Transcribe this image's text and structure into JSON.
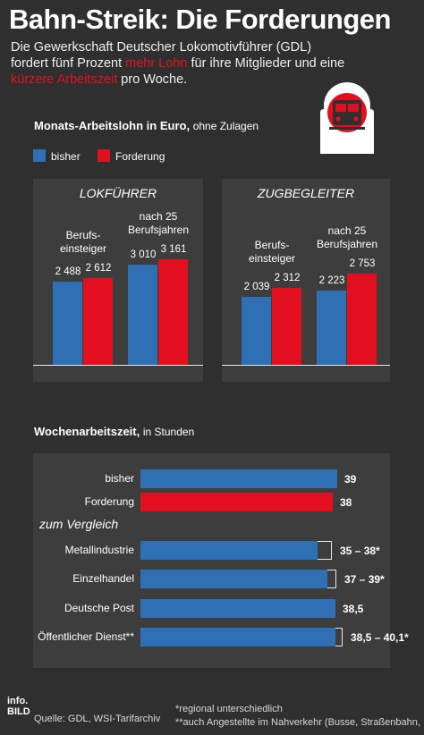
{
  "title": "Bahn-Streik: Die Forderungen",
  "intro": {
    "part1": "Die Gewerkschaft Deutscher Lokomotivführer (GDL) fordert fünf Prozent ",
    "hl1": "mehr Lohn",
    "part2": " für ihre Mitglieder und eine ",
    "hl2": "kürzere Arbeitszeit",
    "part3": " pro Woche."
  },
  "colors": {
    "bisher": "#2f6fb3",
    "forderung": "#e2101f",
    "background": "#2f2f2f",
    "panel": "#3d3d3d"
  },
  "icon": "train-icon",
  "chart_data": [
    {
      "type": "bar",
      "title": "Monats-Arbeitslohn in Euro,",
      "subtitle": "ohne Zulagen",
      "legend": [
        "bisher",
        "Forderung"
      ],
      "panels": [
        {
          "title": "LOKFÜHRER",
          "categories": [
            "Berufs-\neinsteiger",
            "nach 25\nBerufsjahren"
          ],
          "series": [
            {
              "name": "bisher",
              "values": [
                2488,
                3010
              ],
              "labels": [
                "2 488",
                "3 010"
              ]
            },
            {
              "name": "Forderung",
              "values": [
                2612,
                3161
              ],
              "labels": [
                "2 612",
                "3 161"
              ]
            }
          ]
        },
        {
          "title": "ZUGBEGLEITER",
          "categories": [
            "Berufs-\neinsteiger",
            "nach 25\nBerufsjahren"
          ],
          "series": [
            {
              "name": "bisher",
              "values": [
                2039,
                2223
              ],
              "labels": [
                "2 039",
                "2 223"
              ]
            },
            {
              "name": "Forderung",
              "values": [
                2312,
                2753
              ],
              "labels": [
                "2 312",
                "2 753"
              ]
            }
          ]
        }
      ]
    },
    {
      "type": "bar",
      "orientation": "horizontal",
      "title": "Wochenarbeitszeit,",
      "subtitle": "in Stunden",
      "group_label": "zum Vergleich",
      "rows": [
        {
          "label": "bisher",
          "value": 39,
          "label_text": "39",
          "color": "#2f6fb3"
        },
        {
          "label": "Forderung",
          "value": 38,
          "label_text": "38",
          "color": "#e2101f"
        },
        {
          "label": "Metallindustrie",
          "value": 35,
          "value_max": 38,
          "label_text": "35 – 38*",
          "color": "#2f6fb3"
        },
        {
          "label": "Einzelhandel",
          "value": 37,
          "value_max": 39,
          "label_text": "37 – 39*",
          "color": "#2f6fb3"
        },
        {
          "label": "Deutsche Post",
          "value": 38.5,
          "label_text": "38,5",
          "color": "#2f6fb3"
        },
        {
          "label": "Öffentlicher Dienst**",
          "value": 38.5,
          "value_max": 40.1,
          "label_text": "38,5 – 40,1*",
          "color": "#2f6fb3"
        }
      ]
    }
  ],
  "footer": {
    "logo": "info. BILD",
    "source": "Quelle: GDL, WSI-Tarifarchiv",
    "note1": "*regional unterschiedlich",
    "note2": "**auch Angestellte im Nahverkehr (Busse, Straßenbahn, ...)"
  }
}
